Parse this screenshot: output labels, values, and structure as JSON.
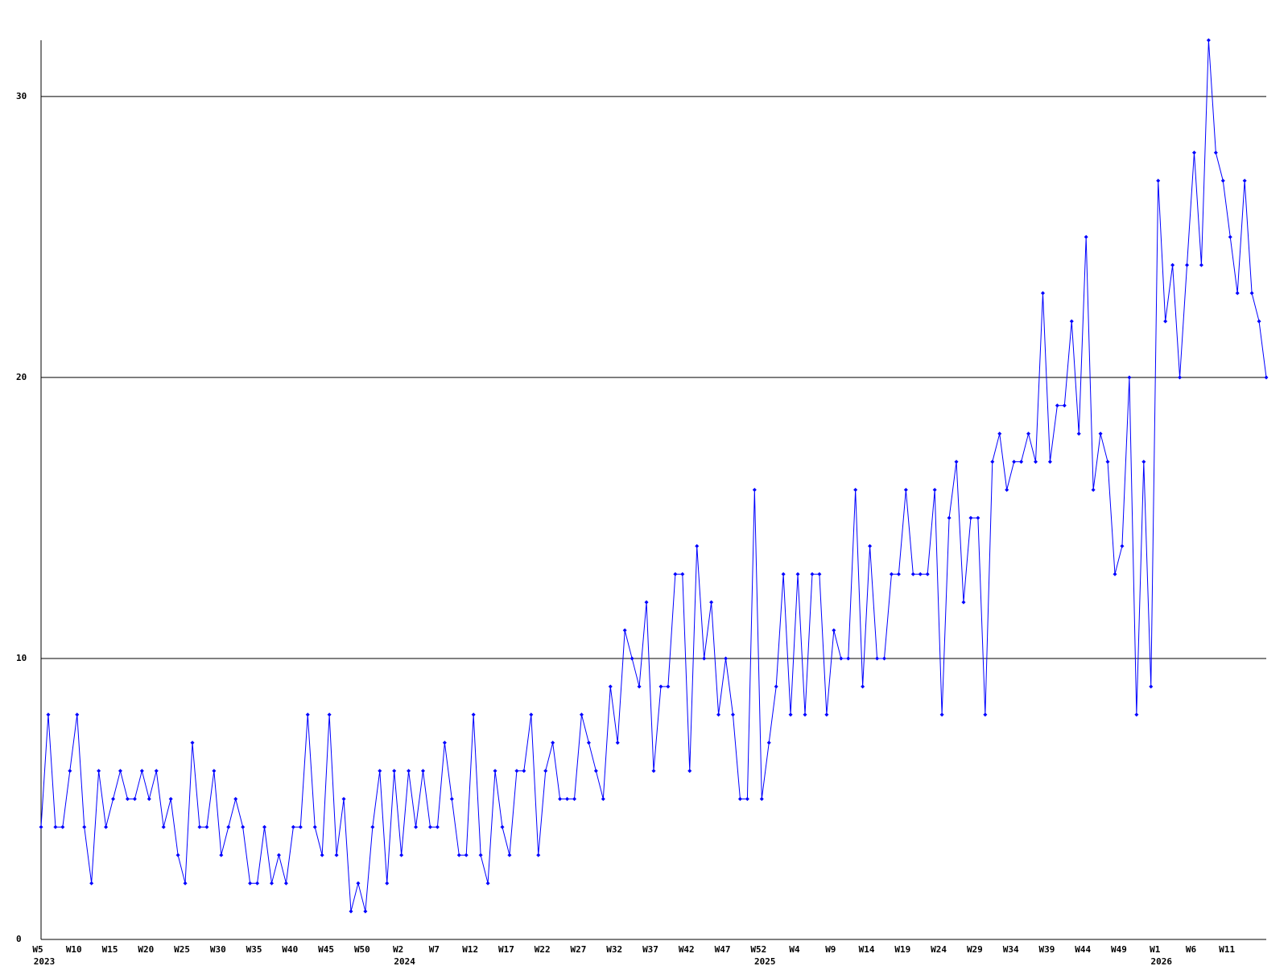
{
  "chart_data": {
    "type": "line",
    "categories": [
      "W5",
      null,
      null,
      null,
      null,
      "W10",
      null,
      null,
      null,
      null,
      "W15",
      null,
      null,
      null,
      null,
      "W20",
      null,
      null,
      null,
      null,
      "W25",
      null,
      null,
      null,
      null,
      "W30",
      null,
      null,
      null,
      null,
      "W35",
      null,
      null,
      null,
      null,
      "W40",
      null,
      null,
      null,
      null,
      "W45",
      null,
      null,
      null,
      null,
      "W50",
      null,
      null,
      null,
      null,
      "W2",
      null,
      null,
      null,
      null,
      "W7",
      null,
      null,
      null,
      null,
      "W12",
      null,
      null,
      null,
      null,
      "W17",
      null,
      null,
      null,
      null,
      "W22",
      null,
      null,
      null,
      null,
      "W27",
      null,
      null,
      null,
      null,
      "W32",
      null,
      null,
      null,
      null,
      "W37",
      null,
      null,
      null,
      null,
      "W42",
      null,
      null,
      null,
      null,
      "W47",
      null,
      null,
      null,
      null,
      "W52",
      null,
      null,
      null,
      null,
      "W4",
      null,
      null,
      null,
      null,
      "W9",
      null,
      null,
      null,
      null,
      "W14",
      null,
      null,
      null,
      null,
      "W19",
      null,
      null,
      null,
      null,
      "W24",
      null,
      null,
      null,
      null,
      "W29",
      null,
      null,
      null,
      null,
      "W34",
      null,
      null,
      null,
      null,
      "W39",
      null,
      null,
      null,
      null,
      "W44",
      null,
      null,
      null,
      null,
      "W49",
      null,
      null,
      null,
      null,
      "W1",
      null,
      null,
      null,
      null,
      "W6",
      null,
      null,
      null,
      null,
      "W11",
      null,
      null,
      null,
      null,
      null
    ],
    "x_years": [
      "2023",
      null,
      null,
      null,
      null,
      null,
      null,
      null,
      null,
      null,
      null,
      null,
      null,
      null,
      null,
      null,
      null,
      null,
      null,
      null,
      null,
      null,
      null,
      null,
      null,
      null,
      null,
      null,
      null,
      null,
      null,
      null,
      null,
      null,
      null,
      null,
      null,
      null,
      null,
      null,
      null,
      null,
      null,
      null,
      null,
      null,
      null,
      null,
      null,
      null,
      "2024",
      null,
      null,
      null,
      null,
      null,
      null,
      null,
      null,
      null,
      null,
      null,
      null,
      null,
      null,
      null,
      null,
      null,
      null,
      null,
      null,
      null,
      null,
      null,
      null,
      null,
      null,
      null,
      null,
      null,
      null,
      null,
      null,
      null,
      null,
      null,
      null,
      null,
      null,
      null,
      null,
      null,
      null,
      null,
      null,
      null,
      null,
      null,
      null,
      null,
      "2025",
      null,
      null,
      null,
      null,
      null,
      null,
      null,
      null,
      null,
      null,
      null,
      null,
      null,
      null,
      null,
      null,
      null,
      null,
      null,
      null,
      null,
      null,
      null,
      null,
      null,
      null,
      null,
      null,
      null,
      null,
      null,
      null,
      null,
      null,
      null,
      null,
      null,
      null,
      null,
      null,
      null,
      null,
      null,
      null,
      null,
      null,
      null,
      null,
      null,
      null,
      null,
      null,
      null,
      null,
      "2026",
      null,
      null,
      null,
      null,
      null,
      null,
      null,
      null,
      null,
      null,
      null,
      null,
      null,
      null,
      null
    ],
    "series": [
      {
        "color": "#0000ff",
        "values": [
          4,
          8,
          4,
          4,
          6,
          8,
          4,
          2,
          6,
          4,
          5,
          6,
          5,
          5,
          6,
          5,
          6,
          4,
          5,
          3,
          2,
          7,
          4,
          4,
          6,
          3,
          4,
          5,
          4,
          2,
          2,
          4,
          2,
          3,
          2,
          4,
          4,
          8,
          4,
          3,
          8,
          3,
          5,
          1,
          2,
          1,
          4,
          6,
          2,
          6,
          3,
          6,
          4,
          6,
          4,
          4,
          7,
          5,
          3,
          3,
          8,
          3,
          2,
          6,
          4,
          3,
          6,
          6,
          8,
          3,
          6,
          7,
          5,
          5,
          5,
          8,
          7,
          6,
          5,
          9,
          7,
          11,
          10,
          9,
          12,
          6,
          9,
          9,
          13,
          13,
          6,
          14,
          10,
          12,
          8,
          10,
          8,
          5,
          5,
          16,
          5,
          7,
          9,
          13,
          8,
          13,
          8,
          13,
          13,
          8,
          11,
          10,
          10,
          16,
          9,
          14,
          10,
          10,
          13,
          13,
          16,
          13,
          13,
          13,
          16,
          8,
          15,
          17,
          12,
          15,
          15,
          8,
          17,
          18,
          16,
          17,
          17,
          18,
          17,
          23,
          17,
          19,
          19,
          22,
          18,
          25,
          16,
          18,
          17,
          13,
          14,
          20,
          8,
          17,
          9,
          27,
          22,
          24,
          20,
          24,
          28,
          24,
          32,
          28,
          27,
          25,
          23,
          27,
          23,
          22,
          20
        ]
      }
    ],
    "ylim": [
      0,
      32
    ],
    "yticks": [
      0,
      10,
      20,
      30
    ],
    "grid": true
  }
}
